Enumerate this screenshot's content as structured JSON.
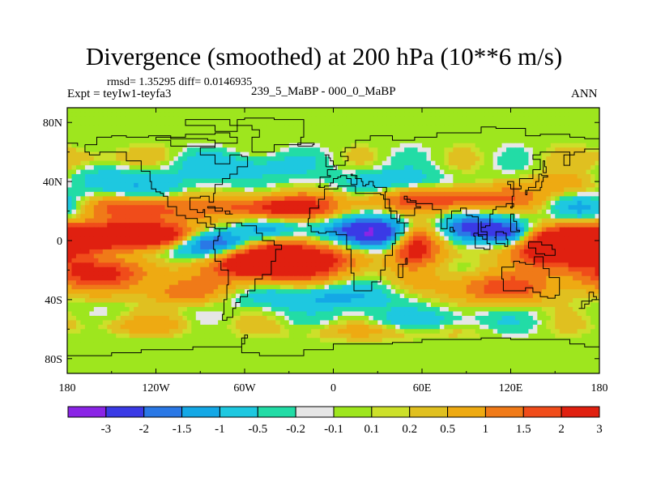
{
  "title": "Divergence (smoothed) at 200 hPa (10**6 m/s)",
  "stats_text": "rmsd= 1.35295 diff= 0.0146935",
  "experiment_text": "Expt = teyIw1-teyfa3",
  "period_text": "239_5_MaBP - 000_0_MaBP",
  "season": "ANN",
  "x_ticks": [
    {
      "lon": -180,
      "label": "180"
    },
    {
      "lon": -120,
      "label": "120W"
    },
    {
      "lon": -60,
      "label": "60W"
    },
    {
      "lon": 0,
      "label": "0"
    },
    {
      "lon": 60,
      "label": "60E"
    },
    {
      "lon": 120,
      "label": "120E"
    },
    {
      "lon": 180,
      "label": "180"
    }
  ],
  "y_ticks": [
    {
      "lat": 80,
      "label": "80N"
    },
    {
      "lat": 40,
      "label": "40N"
    },
    {
      "lat": 0,
      "label": "0"
    },
    {
      "lat": -40,
      "label": "40S"
    },
    {
      "lat": -80,
      "label": "80S"
    }
  ],
  "lon_range": [
    -180,
    180
  ],
  "lat_range": [
    -90,
    90
  ],
  "colorbar": {
    "colors": [
      "#8a24e6",
      "#3a3ae6",
      "#2a78e6",
      "#14a8e6",
      "#1ec8e0",
      "#22dca6",
      "#e6e6e6",
      "#9ee61e",
      "#cce02a",
      "#e0c020",
      "#eeaa12",
      "#f07a18",
      "#f04c1a",
      "#e02010"
    ],
    "labels": [
      "-3",
      "-2",
      "-1.5",
      "-1",
      "-0.5",
      "-0.2",
      "-0.1",
      "0.1",
      "0.2",
      "0.5",
      "1",
      "1.5",
      "2",
      "3"
    ]
  },
  "chart_data": {
    "type": "heatmap",
    "title": "Divergence (smoothed) at 200 hPa (10**6 m/s)",
    "units": "10**6 m/s",
    "pressure_level_hPa": 200,
    "x_axis": "longitude",
    "y_axis": "latitude",
    "xlim": [
      -180,
      180
    ],
    "ylim": [
      -90,
      90
    ],
    "contour_levels": [
      -3,
      -2,
      -1.5,
      -1,
      -0.5,
      -0.2,
      -0.1,
      0.1,
      0.2,
      0.5,
      1,
      1.5,
      2,
      3
    ],
    "field_features": [
      {
        "name": "equatorial-east-pacific-positive",
        "lon": -150,
        "lat": 0,
        "value": 3
      },
      {
        "name": "south-atlantic-positive",
        "lon": -20,
        "lat": -15,
        "value": 3
      },
      {
        "name": "africa-indian-negative",
        "lon": 25,
        "lat": 5,
        "value": -3
      },
      {
        "name": "arabian-positive",
        "lon": 50,
        "lat": 0,
        "value": 3
      },
      {
        "name": "west-pacific-positive",
        "lon": 150,
        "lat": -5,
        "value": 3
      },
      {
        "name": "northern-subtropical-band-positive",
        "lon": -30,
        "lat": 22,
        "value": 2
      },
      {
        "name": "southern-midlat-band-positive",
        "lon": -150,
        "lat": -20,
        "value": 2
      },
      {
        "name": "high-latitude-neutral",
        "lon": 0,
        "lat": 75,
        "value": 0
      }
    ]
  }
}
